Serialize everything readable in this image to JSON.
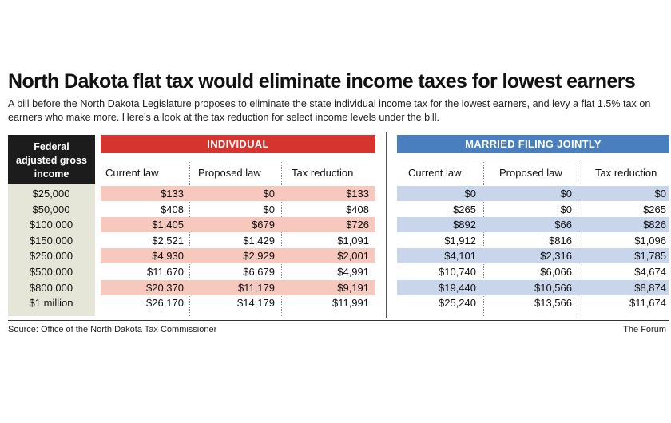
{
  "chart_data": {
    "type": "table",
    "title": "North Dakota flat tax would eliminate income taxes for lowest earners",
    "subtitle": "A bill before the North Dakota Legislature proposes to eliminate the state individual income tax for the lowest earners, and levy a flat 1.5% tax on earners who make more. Here's a look at the tax reduction for select income levels under the bill.",
    "row_header": "Federal adjusted gross income",
    "row_header_lines": [
      "Federal",
      "adjusted gross",
      "income"
    ],
    "groups": [
      {
        "name": "INDIVIDUAL",
        "color": "#d6352f",
        "band_color": "#f6c8be"
      },
      {
        "name": "MARRIED FILING JOINTLY",
        "color": "#4a7fbf",
        "band_color": "#c9d5ea"
      }
    ],
    "columns": [
      "Current law",
      "Proposed law",
      "Tax reduction"
    ],
    "rows": [
      {
        "income": "$25,000",
        "individual": [
          "$133",
          "$0",
          "$133"
        ],
        "joint": [
          "$0",
          "$0",
          "$0"
        ]
      },
      {
        "income": "$50,000",
        "individual": [
          "$408",
          "$0",
          "$408"
        ],
        "joint": [
          "$265",
          "$0",
          "$265"
        ]
      },
      {
        "income": "$100,000",
        "individual": [
          "$1,405",
          "$679",
          "$726"
        ],
        "joint": [
          "$892",
          "$66",
          "$826"
        ]
      },
      {
        "income": "$150,000",
        "individual": [
          "$2,521",
          "$1,429",
          "$1,091"
        ],
        "joint": [
          "$1,912",
          "$816",
          "$1,096"
        ]
      },
      {
        "income": "$250,000",
        "individual": [
          "$4,930",
          "$2,929",
          "$2,001"
        ],
        "joint": [
          "$4,101",
          "$2,316",
          "$1,785"
        ]
      },
      {
        "income": "$500,000",
        "individual": [
          "$11,670",
          "$6,679",
          "$4,991"
        ],
        "joint": [
          "$10,740",
          "$6,066",
          "$4,674"
        ]
      },
      {
        "income": "$800,000",
        "individual": [
          "$20,370",
          "$11,179",
          "$9,191"
        ],
        "joint": [
          "$19,440",
          "$10,566",
          "$8,874"
        ]
      },
      {
        "income": "$1 million",
        "individual": [
          "$26,170",
          "$14,179",
          "$11,991"
        ],
        "joint": [
          "$25,240",
          "$13,566",
          "$11,674"
        ]
      }
    ],
    "source": "Source: Office of the North Dakota Tax Commissioner",
    "credit": "The Forum"
  }
}
